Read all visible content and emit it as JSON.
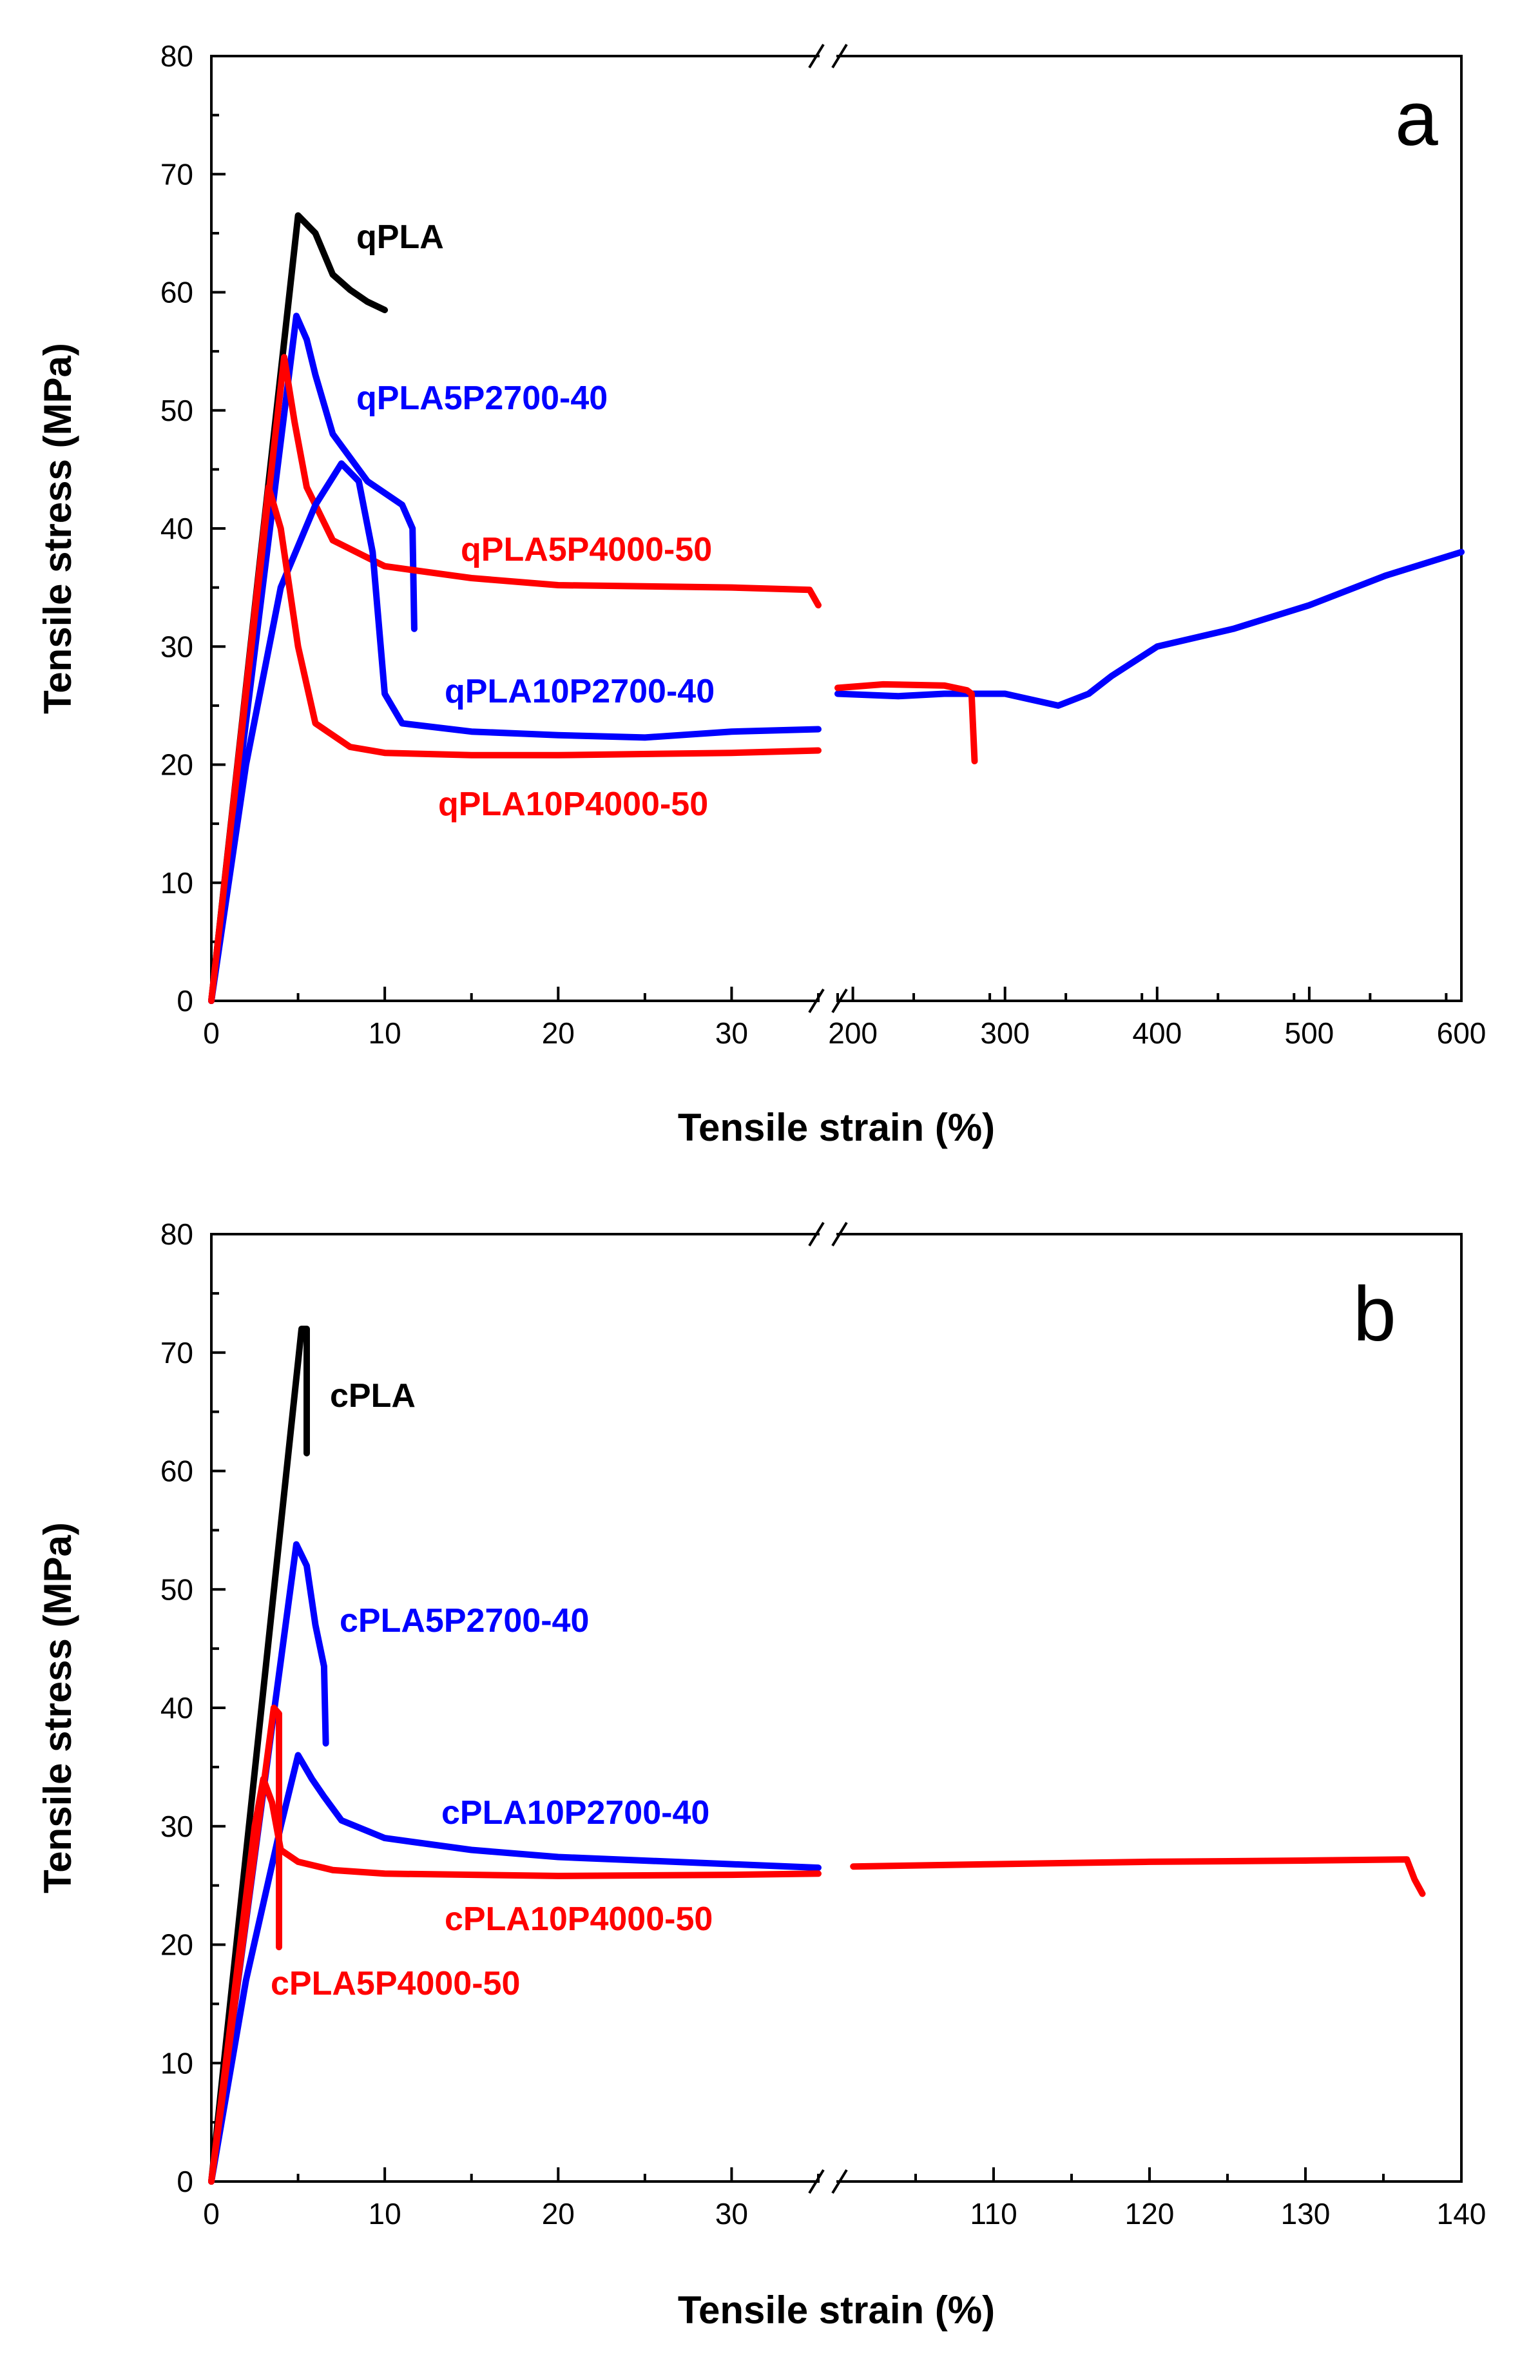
{
  "chart_data": [
    {
      "type": "line",
      "panel": "a",
      "ylabel": "Tensile stress (MPa)",
      "xlabel": "Tensile strain (%)",
      "ylim": [
        0,
        80
      ],
      "y_ticks": [
        "0",
        "10",
        "20",
        "30",
        "40",
        "50",
        "60",
        "70",
        "80"
      ],
      "x_segments": [
        {
          "range": [
            0,
            35
          ],
          "ticks": [
            "0",
            "10",
            "20",
            "30"
          ]
        },
        {
          "range": [
            190,
            600
          ],
          "ticks": [
            "200",
            "300",
            "400",
            "500",
            "600"
          ]
        }
      ],
      "axis_break": "//",
      "series": [
        {
          "name": "qPLA",
          "color": "#000000",
          "points": [
            [
              0,
              0
            ],
            [
              5,
              66.5
            ],
            [
              6,
              65
            ],
            [
              7,
              61.5
            ],
            [
              8,
              60.2
            ],
            [
              9,
              59.2
            ],
            [
              10,
              58.5
            ]
          ]
        },
        {
          "name": "qPLA5P2700-40",
          "color": "#0000ff",
          "points": [
            [
              0,
              0
            ],
            [
              4.9,
              58
            ],
            [
              5.5,
              56
            ],
            [
              6,
              53
            ],
            [
              7,
              48
            ],
            [
              9,
              44
            ],
            [
              11,
              42
            ],
            [
              11.6,
              40
            ],
            [
              11.7,
              31.5
            ]
          ]
        },
        {
          "name": "qPLA5P4000-50",
          "color": "#ff0000",
          "points": [
            [
              0,
              0
            ],
            [
              4.2,
              54.5
            ],
            [
              4.8,
              49
            ],
            [
              5.5,
              43.5
            ],
            [
              7,
              39
            ],
            [
              10,
              36.8
            ],
            [
              15,
              35.8
            ],
            [
              20,
              35.2
            ],
            [
              30,
              35
            ],
            [
              34.5,
              34.8
            ],
            [
              35,
              33.5
            ],
            [
              35.1,
              29.5
            ]
          ]
        },
        {
          "name": "qPLA10P2700-40",
          "color": "#0000ff",
          "points": [
            [
              0,
              0
            ],
            [
              2,
              20
            ],
            [
              4,
              35
            ],
            [
              6,
              42
            ],
            [
              7.5,
              45.5
            ],
            [
              8.5,
              44
            ],
            [
              9.3,
              38
            ],
            [
              10,
              26
            ],
            [
              11,
              23.5
            ],
            [
              15,
              22.8
            ],
            [
              20,
              22.5
            ],
            [
              25,
              22.3
            ],
            [
              30,
              22.8
            ],
            [
              35,
              23
            ],
            [
              190,
              26
            ],
            [
              230,
              25.8
            ],
            [
              260,
              26
            ],
            [
              300,
              26
            ],
            [
              335,
              25
            ],
            [
              355,
              26
            ],
            [
              370,
              27.5
            ],
            [
              400,
              30
            ],
            [
              450,
              31.5
            ],
            [
              500,
              33.5
            ],
            [
              550,
              36
            ],
            [
              600,
              38
            ]
          ]
        },
        {
          "name": "qPLA10P4000-50",
          "color": "#ff0000",
          "points": [
            [
              0,
              0
            ],
            [
              3.3,
              43.5
            ],
            [
              4,
              40
            ],
            [
              5,
              30
            ],
            [
              6,
              23.5
            ],
            [
              8,
              21.5
            ],
            [
              10,
              21
            ],
            [
              15,
              20.8
            ],
            [
              20,
              20.8
            ],
            [
              30,
              21
            ],
            [
              35,
              21.2
            ],
            [
              190,
              26.5
            ],
            [
              220,
              26.8
            ],
            [
              260,
              26.7
            ],
            [
              275,
              26.3
            ],
            [
              278,
              26
            ],
            [
              280,
              20.3
            ]
          ]
        }
      ],
      "labels": [
        {
          "text": "qPLA",
          "series": "qPLA"
        },
        {
          "text": "qPLA5P2700-40",
          "series": "qPLA5P2700-40"
        },
        {
          "text": "qPLA5P4000-50",
          "series": "qPLA5P4000-50"
        },
        {
          "text": "qPLA10P2700-40",
          "series": "qPLA10P2700-40"
        },
        {
          "text": "qPLA10P4000-50",
          "series": "qPLA10P4000-50"
        }
      ]
    },
    {
      "type": "line",
      "panel": "b",
      "ylabel": "Tensile stress (MPa)",
      "xlabel": "Tensile strain (%)",
      "ylim": [
        0,
        80
      ],
      "y_ticks": [
        "0",
        "10",
        "20",
        "30",
        "40",
        "50",
        "60",
        "70",
        "80"
      ],
      "x_segments": [
        {
          "range": [
            0,
            35
          ],
          "ticks": [
            "0",
            "10",
            "20",
            "30"
          ]
        },
        {
          "range": [
            100,
            140
          ],
          "ticks": [
            "110",
            "120",
            "130",
            "140"
          ]
        }
      ],
      "axis_break": "//",
      "series": [
        {
          "name": "cPLA",
          "color": "#000000",
          "points": [
            [
              0,
              0
            ],
            [
              5.2,
              72
            ],
            [
              5.5,
              72
            ],
            [
              5.5,
              61.5
            ]
          ]
        },
        {
          "name": "cPLA5P2700-40",
          "color": "#0000ff",
          "points": [
            [
              0,
              0
            ],
            [
              4.9,
              53.8
            ],
            [
              5.5,
              52
            ],
            [
              6,
              47
            ],
            [
              6.5,
              43.5
            ],
            [
              6.6,
              37
            ]
          ]
        },
        {
          "name": "cPLA10P2700-40",
          "color": "#0000ff",
          "points": [
            [
              0,
              0
            ],
            [
              2,
              17
            ],
            [
              4,
              30
            ],
            [
              5,
              36
            ],
            [
              5.8,
              34
            ],
            [
              6.5,
              32.5
            ],
            [
              7.5,
              30.5
            ],
            [
              10,
              29
            ],
            [
              15,
              28
            ],
            [
              20,
              27.4
            ],
            [
              30,
              26.8
            ],
            [
              35,
              26.5
            ]
          ]
        },
        {
          "name": "cPLA10P4000-50",
          "color": "#ff0000",
          "points": [
            [
              0,
              0
            ],
            [
              2.5,
              30
            ],
            [
              3,
              34
            ],
            [
              3.5,
              32
            ],
            [
              4,
              28
            ],
            [
              5,
              27
            ],
            [
              7,
              26.3
            ],
            [
              10,
              26
            ],
            [
              20,
              25.8
            ],
            [
              30,
              25.9
            ],
            [
              35,
              26
            ],
            [
              101,
              26.6
            ],
            [
              110,
              26.8
            ],
            [
              120,
              27
            ],
            [
              130,
              27.1
            ],
            [
              136.5,
              27.2
            ],
            [
              137,
              25.5
            ],
            [
              137.5,
              24.3
            ]
          ]
        },
        {
          "name": "cPLA5P4000-50",
          "color": "#ff0000",
          "points": [
            [
              0,
              0
            ],
            [
              3.6,
              40
            ],
            [
              3.9,
              39.5
            ],
            [
              3.9,
              19.8
            ]
          ]
        }
      ],
      "labels": [
        {
          "text": "cPLA",
          "series": "cPLA"
        },
        {
          "text": "cPLA5P2700-40",
          "series": "cPLA5P2700-40"
        },
        {
          "text": "cPLA10P2700-40",
          "series": "cPLA10P2700-40"
        },
        {
          "text": "cPLA10P4000-50",
          "series": "cPLA10P4000-50"
        },
        {
          "text": "cPLA5P4000-50",
          "series": "cPLA5P4000-50"
        }
      ]
    }
  ]
}
